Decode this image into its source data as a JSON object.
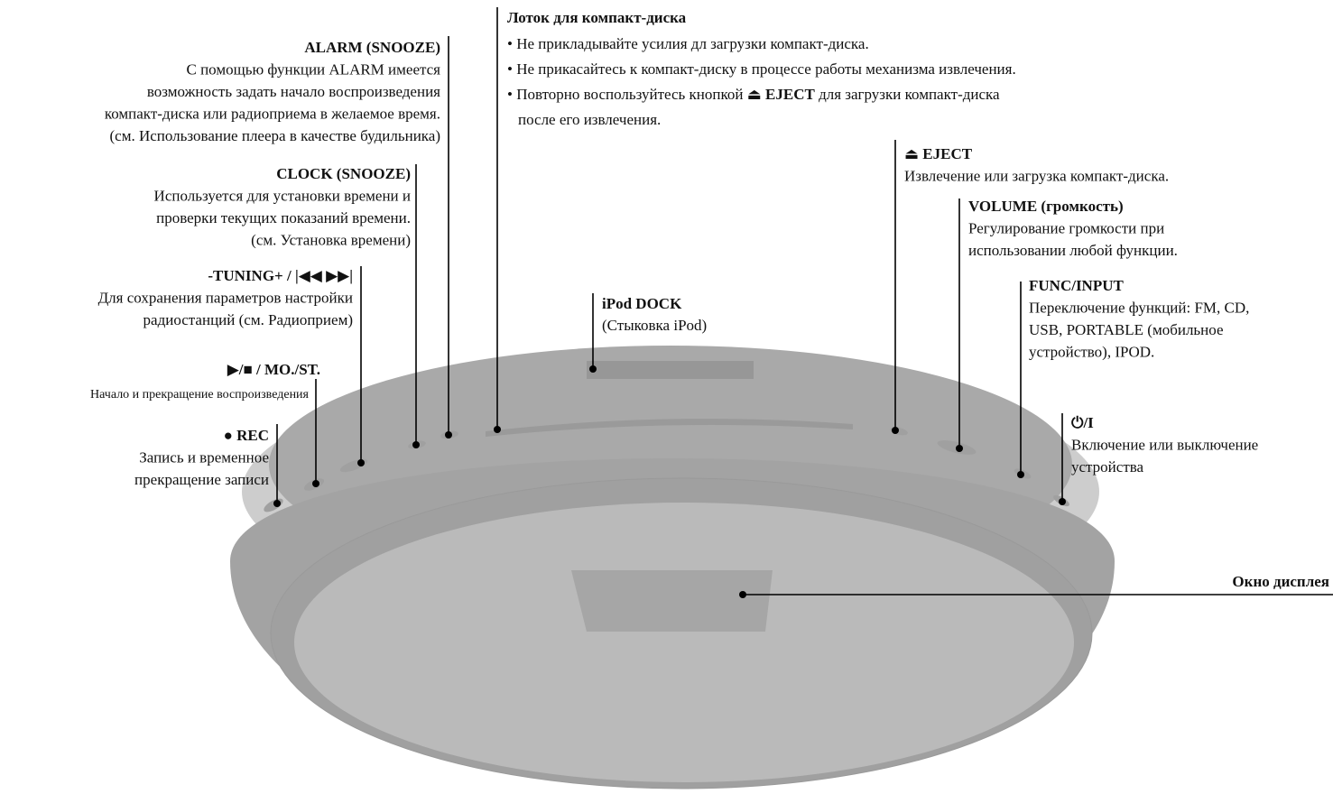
{
  "callouts": [
    {
      "title": "ALARM (SNOOZE)",
      "lines": [
        "С помощью функции ALARM имеется",
        "возможность задать начало воспроизведения",
        "компакт-диска или радиоприема в желаемое время.",
        "(см. Использование плеера в качестве будильника)"
      ]
    },
    {
      "title": "CLOCK (SNOOZE)",
      "lines": [
        "Используется для установки времени и",
        "проверки текущих показаний времени.",
        "(см. Установка времени)"
      ]
    },
    {
      "title": "-TUNING+ / |◀◀ ▶▶|",
      "lines": [
        "Для сохранения параметров настройки",
        "радиостанций (см. Радиоприем)"
      ]
    },
    {
      "title": "▶/■ / MO./ST.",
      "lines": [
        "Начало и прекращение воспроизведения"
      ]
    },
    {
      "title": "● REC",
      "lines": [
        "Запись и временное",
        "прекращение записи"
      ]
    },
    {
      "title": "iPod DOCK",
      "lines": [
        "(Стыковка iPod)"
      ]
    },
    {
      "title": "⏏ EJECT",
      "lines": [
        "Извлечение или загрузка компакт-диска."
      ]
    },
    {
      "title": "VOLUME (громкость)",
      "lines": [
        "Регулирование громкости при",
        "использовании любой функции."
      ]
    },
    {
      "title": "FUNC/INPUT",
      "lines": [
        "Переключение функций: FM, CD,",
        "USB, PORTABLE (мобильное",
        "устройство), IPOD."
      ]
    },
    {
      "title": "⏻/I",
      "lines": [
        "Включение или выключение",
        "устройства"
      ]
    }
  ],
  "tray": {
    "title": "Лоток для компакт-диска",
    "bullets": [
      "• Не прикладывайте усилия дл загрузки компакт-диска.",
      "• Не прикасайтесь к компакт-диску в процессе работы механизма извлечения."
    ],
    "eject_note": {
      "before": "• Повторно воспользуйтесь кнопкой",
      "bold": "⏏ EJECT",
      "after": "для загрузки компакт-диска"
    },
    "continuation": "после его извлечения."
  },
  "display": "Окно дисплея"
}
